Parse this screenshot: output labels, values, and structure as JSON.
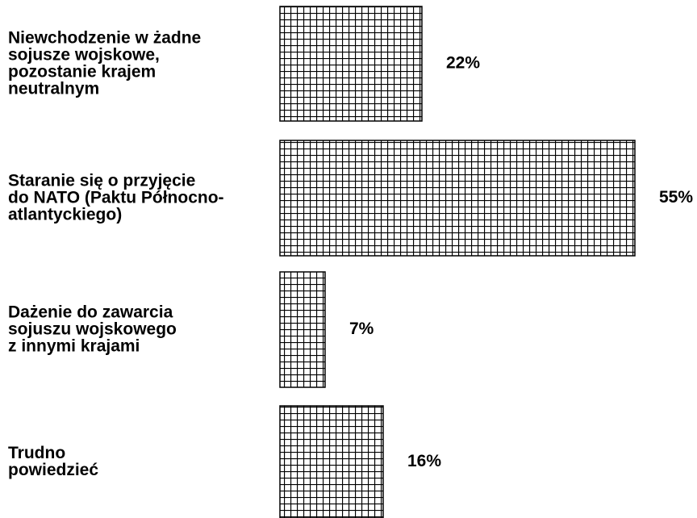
{
  "chart_data": {
    "type": "hbar",
    "categories": [
      "Niewchodzenie w żadne\nsojusze wojskowe,\npozostanie krajem\nneutralnym",
      "Staranie się o przyjęcie\ndo NATO (Paktu Północno-\natlantyckiego)",
      "Dażenie do zawarcia\nsojuszu wojskowego\nz innymi krajami",
      "Trudno\npowiedzieć"
    ],
    "values": [
      22,
      55,
      7,
      16
    ],
    "value_labels": [
      "22%",
      "55%",
      "7%",
      "16%"
    ],
    "color": "#000000"
  }
}
